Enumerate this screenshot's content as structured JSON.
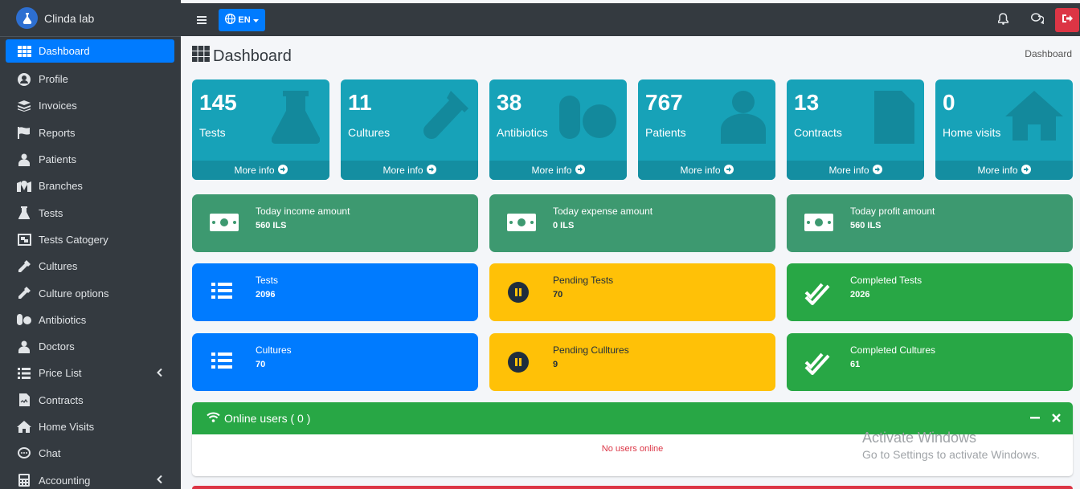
{
  "brand": {
    "name": "Clinda lab"
  },
  "sidebar": {
    "items": [
      {
        "label": "Dashboard",
        "icon": "grid-icon"
      },
      {
        "label": "Profile",
        "icon": "user-circle-icon"
      },
      {
        "label": "Invoices",
        "icon": "layers-icon"
      },
      {
        "label": "Reports",
        "icon": "flag-icon"
      },
      {
        "label": "Patients",
        "icon": "user-injured-icon"
      },
      {
        "label": "Branches",
        "icon": "map-marked-icon"
      },
      {
        "label": "Tests",
        "icon": "flask-icon"
      },
      {
        "label": "Tests Catogery",
        "icon": "object-group-icon"
      },
      {
        "label": "Cultures",
        "icon": "eye-dropper-icon"
      },
      {
        "label": "Culture options",
        "icon": "eye-dropper-icon"
      },
      {
        "label": "Antibiotics",
        "icon": "pills-icon"
      },
      {
        "label": "Doctors",
        "icon": "user-md-icon"
      },
      {
        "label": "Price List",
        "icon": "list-icon"
      },
      {
        "label": "Contracts",
        "icon": "file-contract-icon"
      },
      {
        "label": "Home Visits",
        "icon": "home-icon"
      },
      {
        "label": "Chat",
        "icon": "comment-icon"
      },
      {
        "label": "Accounting",
        "icon": "calculator-icon"
      }
    ]
  },
  "topbar": {
    "lang": "EN"
  },
  "page": {
    "title": "Dashboard",
    "breadcrumb": "Dashboard"
  },
  "stats": [
    {
      "value": "145",
      "label": "Tests",
      "more": "More info"
    },
    {
      "value": "11",
      "label": "Cultures",
      "more": "More info"
    },
    {
      "value": "38",
      "label": "Antibiotics",
      "more": "More info"
    },
    {
      "value": "767",
      "label": "Patients",
      "more": "More info"
    },
    {
      "value": "13",
      "label": "Contracts",
      "more": "More info"
    },
    {
      "value": "0",
      "label": "Home visits",
      "more": "More info"
    }
  ],
  "finance": [
    {
      "title": "Today income amount",
      "value": "560 ILS"
    },
    {
      "title": "Today expense amount",
      "value": "0 ILS"
    },
    {
      "title": "Today profit amount",
      "value": "560 ILS"
    }
  ],
  "tests_row": [
    {
      "title": "Tests",
      "value": "2096"
    },
    {
      "title": "Pending Tests",
      "value": "70"
    },
    {
      "title": "Completed Tests",
      "value": "2026"
    }
  ],
  "cultures_row": [
    {
      "title": "Cultures",
      "value": "70"
    },
    {
      "title": "Pending Culltures",
      "value": "9"
    },
    {
      "title": "Completed Cultures",
      "value": "61"
    }
  ],
  "online": {
    "title": "Online users ( 0 )",
    "empty": "No users online"
  },
  "watermark": {
    "line1": "Activate Windows",
    "line2": "Go to Settings to activate Windows."
  },
  "colors": {
    "sidebar": "#343a40",
    "primary": "#007bff",
    "info": "#17a2b8",
    "olive": "#3d9970",
    "warning": "#ffc107",
    "success": "#28a745",
    "danger": "#dc3545"
  }
}
